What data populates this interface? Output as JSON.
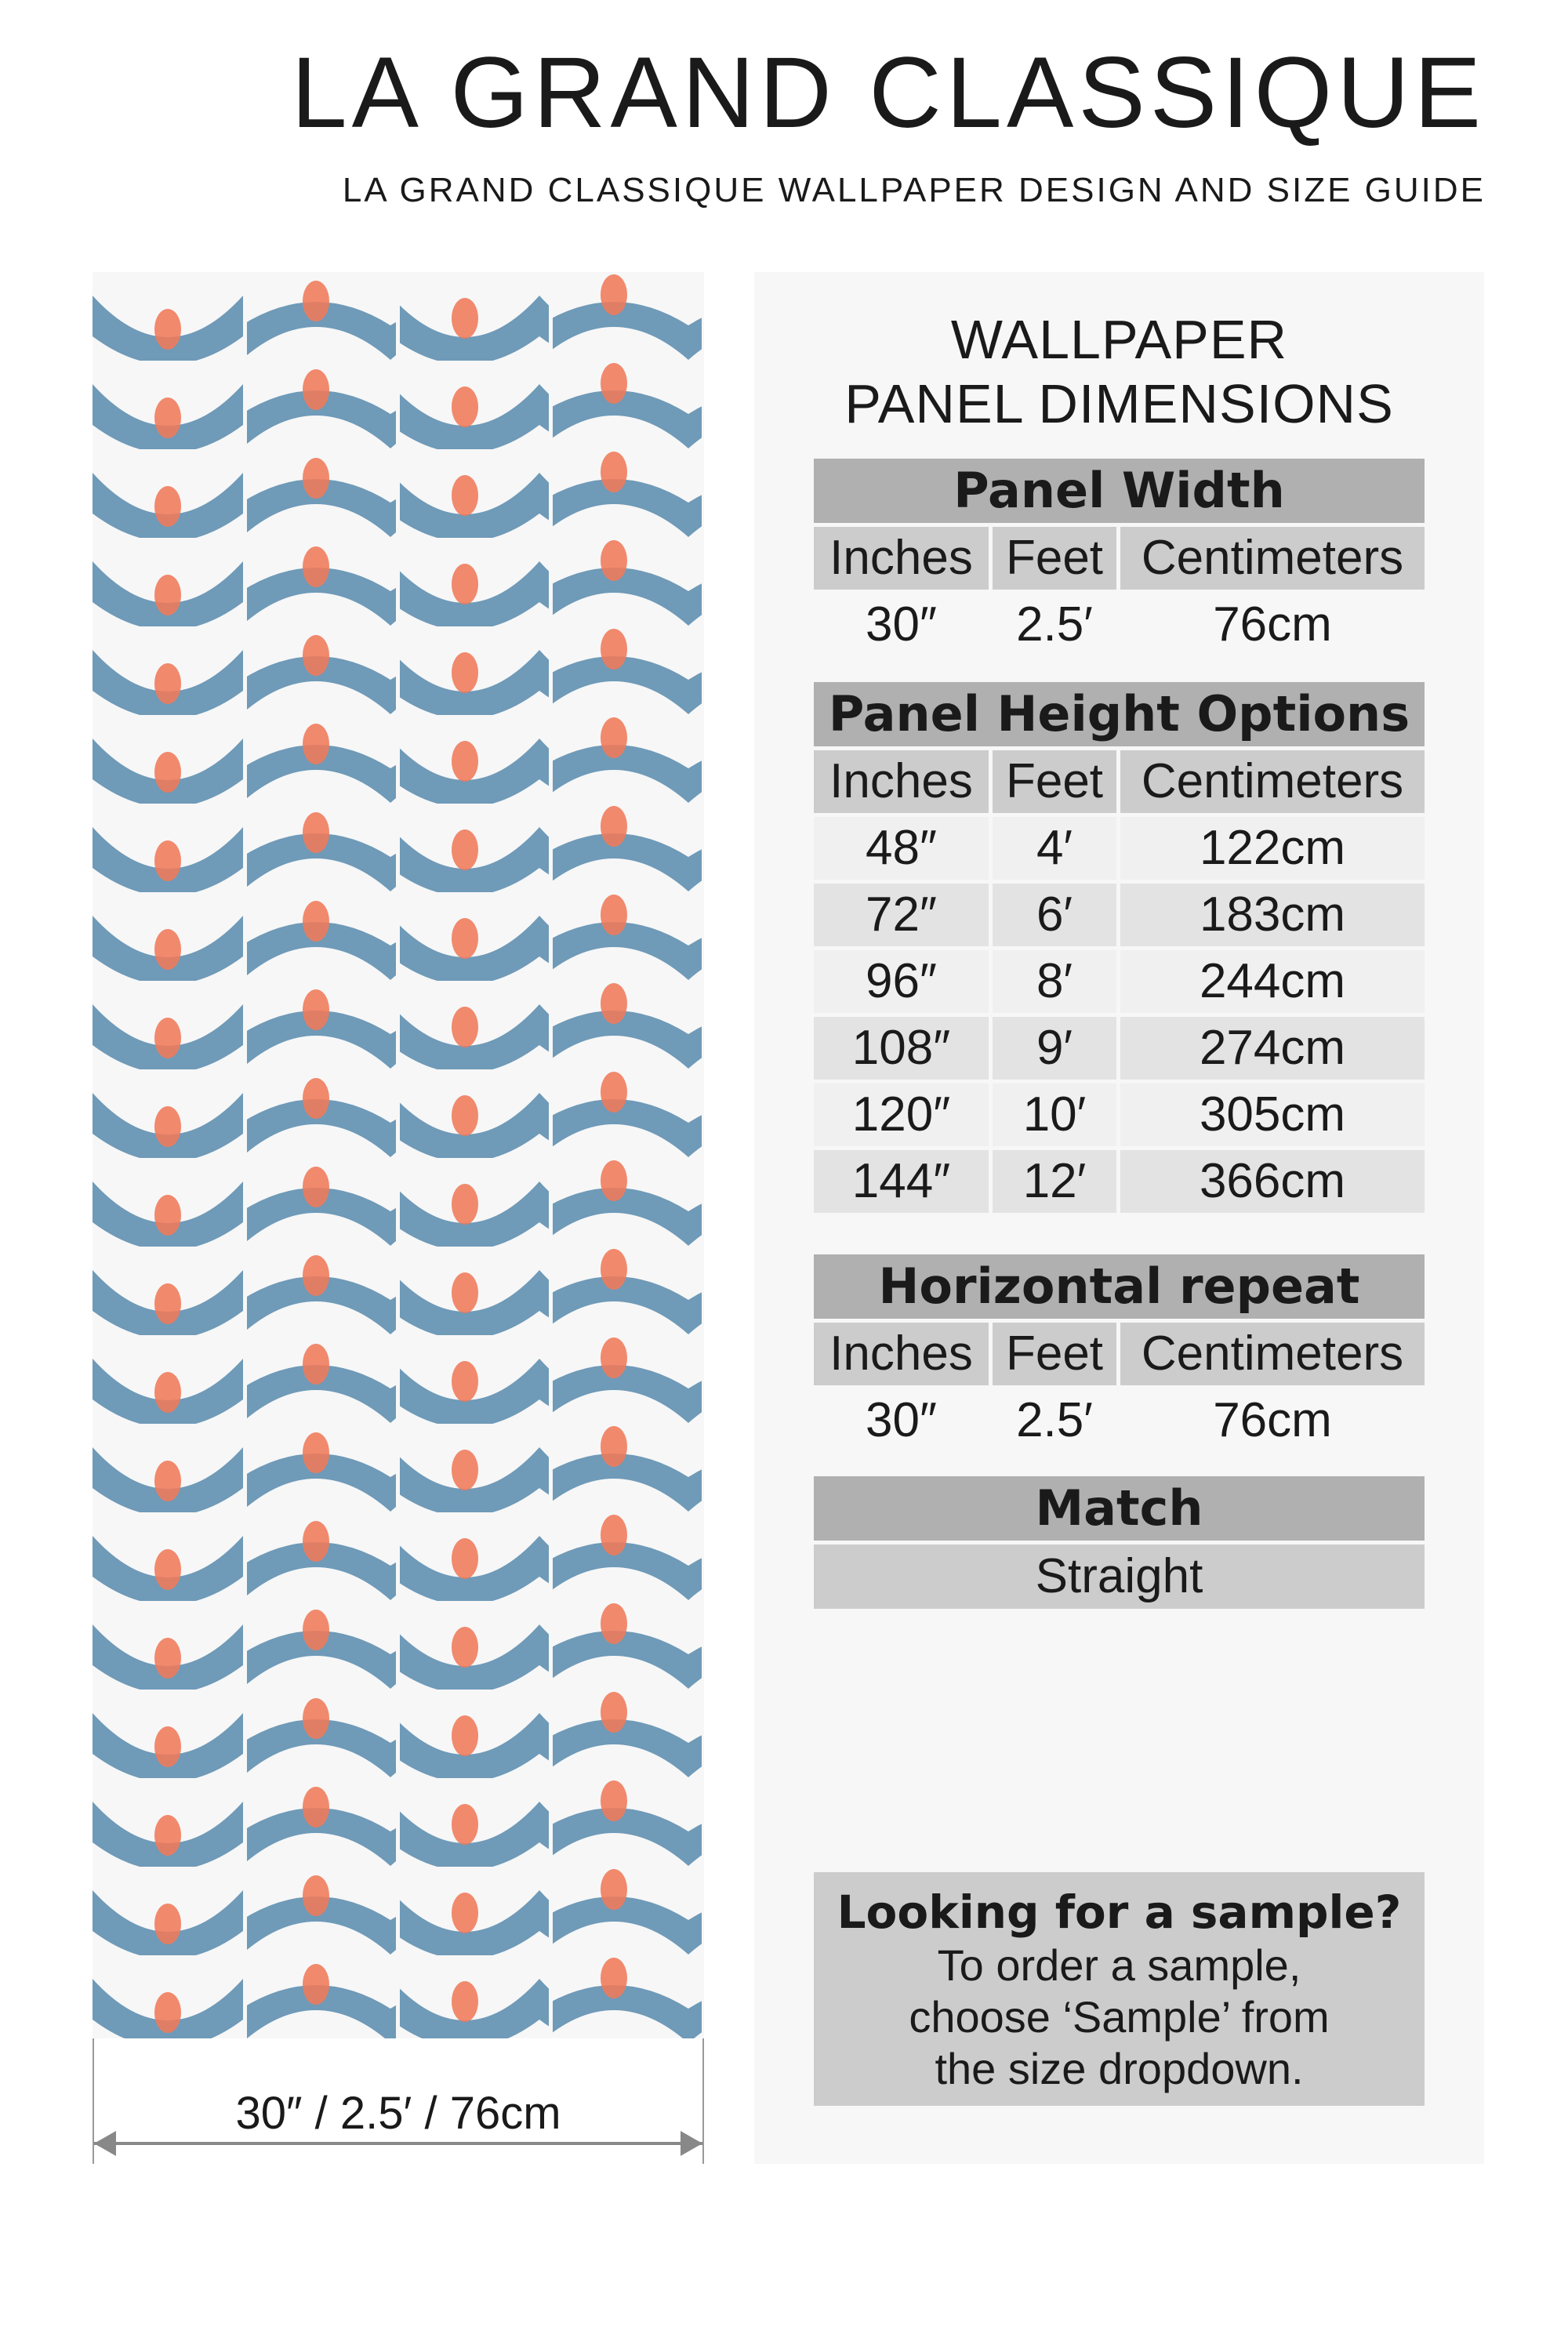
{
  "header": {
    "title": "LA GRAND CLASSIQUE",
    "subtitle": "LA GRAND CLASSIQUE WALLPAPER DESIGN AND SIZE GUIDE"
  },
  "preview": {
    "dimension_label": "30″ / 2.5′ / 76cm",
    "colors": {
      "background": "#f7f7f7",
      "band": "#6f9ab8",
      "dot": "#f07a5a"
    }
  },
  "panel": {
    "title_line1": "WALLPAPER",
    "title_line2": "PANEL DIMENSIONS",
    "columns": [
      "Inches",
      "Feet",
      "Centimeters"
    ],
    "width": {
      "heading": "Panel Width",
      "row": [
        "30″",
        "2.5′",
        "76cm"
      ]
    },
    "height": {
      "heading": "Panel Height Options",
      "rows": [
        [
          "48″",
          "4′",
          "122cm"
        ],
        [
          "72″",
          "6′",
          "183cm"
        ],
        [
          "96″",
          "8′",
          "244cm"
        ],
        [
          "108″",
          "9′",
          "274cm"
        ],
        [
          "120″",
          "10′",
          "305cm"
        ],
        [
          "144″",
          "12′",
          "366cm"
        ]
      ]
    },
    "repeat": {
      "heading": "Horizontal repeat",
      "row": [
        "30″",
        "2.5′",
        "76cm"
      ]
    },
    "match": {
      "heading": "Match",
      "value": "Straight"
    },
    "sample": {
      "title": "Looking for a sample?",
      "line1": "To order a sample,",
      "line2": "choose ‘Sample’ from",
      "line3": "the size dropdown."
    }
  }
}
